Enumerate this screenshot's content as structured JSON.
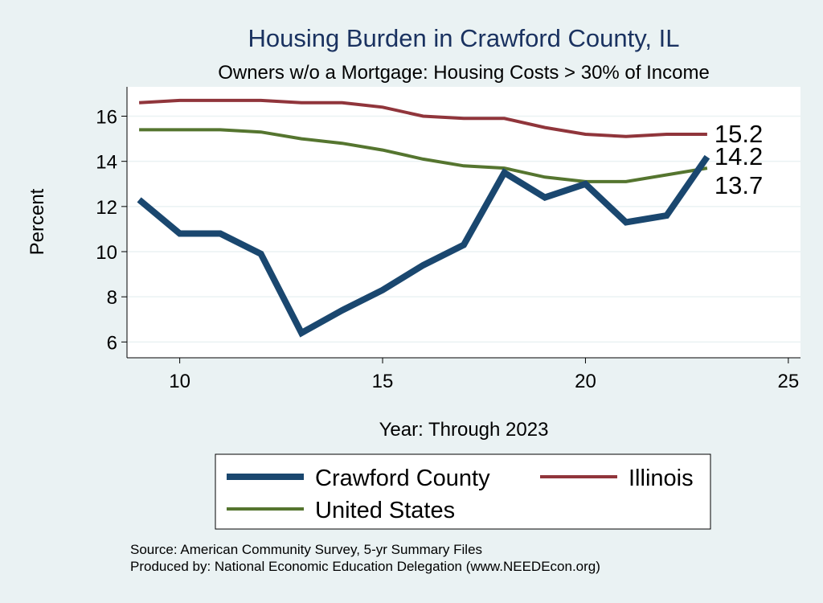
{
  "chart_data": {
    "type": "line",
    "title": "Housing Burden in Crawford County, IL",
    "subtitle": "Owners w/o a Mortgage: Housing Costs > 30% of Income",
    "xlabel": "Year: Through 2023",
    "ylabel": "Percent",
    "xlim": [
      8.7,
      25.3
    ],
    "ylim": [
      5.3,
      17.3
    ],
    "x_ticks": [
      10,
      15,
      20,
      25
    ],
    "y_ticks": [
      6,
      8,
      10,
      12,
      14,
      16
    ],
    "grid": true,
    "legend_position": "bottom",
    "x": [
      9,
      10,
      11,
      12,
      13,
      14,
      15,
      16,
      17,
      18,
      19,
      20,
      21,
      22,
      23
    ],
    "series": [
      {
        "name": "Crawford County",
        "color": "#1a476f",
        "values": [
          12.3,
          10.8,
          10.8,
          9.9,
          6.4,
          7.4,
          8.3,
          9.4,
          10.3,
          13.5,
          12.4,
          13.0,
          11.3,
          11.6,
          14.2
        ],
        "end_label": "14.2"
      },
      {
        "name": "Illinois",
        "color": "#90353b",
        "values": [
          16.6,
          16.7,
          16.7,
          16.7,
          16.6,
          16.6,
          16.4,
          16.0,
          15.9,
          15.9,
          15.5,
          15.2,
          15.1,
          15.2,
          15.2
        ],
        "end_label": "15.2"
      },
      {
        "name": "United States",
        "color": "#55752f",
        "values": [
          15.4,
          15.4,
          15.4,
          15.3,
          15.0,
          14.8,
          14.5,
          14.1,
          13.8,
          13.7,
          13.3,
          13.1,
          13.1,
          13.4,
          13.7
        ],
        "end_label": "13.7"
      }
    ]
  },
  "footer": {
    "source": "Source: American Community Survey, 5-yr Summary Files",
    "producer": "Produced by: National Economic Education Delegation (www.NEEDEcon.org)"
  }
}
